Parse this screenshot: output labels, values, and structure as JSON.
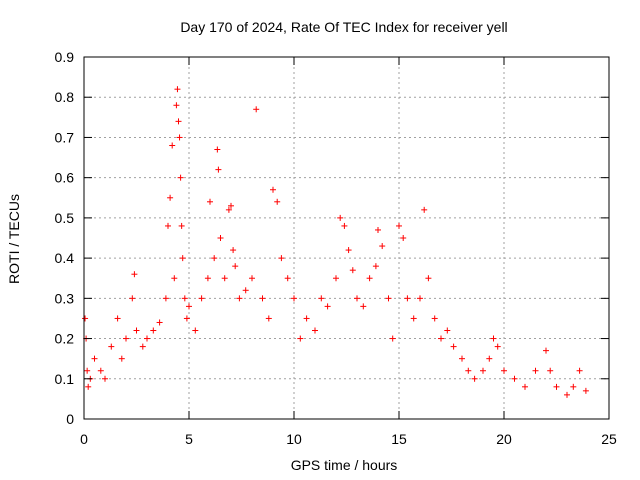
{
  "chart_data": {
    "type": "scatter",
    "title": "Day 170 of 2024, Rate Of TEC Index for receiver yell",
    "xlabel": "GPS time / hours",
    "ylabel": "ROTI / TECUs",
    "xlim": [
      0,
      25
    ],
    "ylim": [
      0,
      0.9
    ],
    "x_ticks": [
      "0",
      "5",
      "10",
      "15",
      "20",
      "25"
    ],
    "y_ticks": [
      "0",
      "0.1",
      "0.2",
      "0.3",
      "0.4",
      "0.5",
      "0.6",
      "0.7",
      "0.8",
      "0.9"
    ],
    "grid": true,
    "marker": "+",
    "series_color": "#ff0000",
    "series": [
      {
        "name": "ROTI",
        "x": [
          0.05,
          0.1,
          0.15,
          0.2,
          0.3,
          0.5,
          0.8,
          1.0,
          1.3,
          1.6,
          1.8,
          2.0,
          2.3,
          2.4,
          2.5,
          2.8,
          3.0,
          3.3,
          3.6,
          3.9,
          4.0,
          4.1,
          4.2,
          4.3,
          4.4,
          4.45,
          4.5,
          4.55,
          4.6,
          4.65,
          4.7,
          4.8,
          4.9,
          5.0,
          5.3,
          5.6,
          5.9,
          6.0,
          6.2,
          6.35,
          6.4,
          6.5,
          6.7,
          6.9,
          7.0,
          7.1,
          7.2,
          7.4,
          7.7,
          8.0,
          8.2,
          8.5,
          8.8,
          9.0,
          9.2,
          9.4,
          9.7,
          10.0,
          10.3,
          10.6,
          11.0,
          11.3,
          11.6,
          12.0,
          12.2,
          12.4,
          12.6,
          12.8,
          13.0,
          13.3,
          13.6,
          13.9,
          14.0,
          14.2,
          14.5,
          14.7,
          15.0,
          15.2,
          15.4,
          15.7,
          16.0,
          16.2,
          16.4,
          16.7,
          17.0,
          17.3,
          17.6,
          18.0,
          18.3,
          18.6,
          19.0,
          19.3,
          19.5,
          19.7,
          20.0,
          20.5,
          21.0,
          21.5,
          22.0,
          22.2,
          22.5,
          23.0,
          23.3,
          23.6,
          23.9
        ],
        "y": [
          0.25,
          0.2,
          0.12,
          0.08,
          0.1,
          0.15,
          0.12,
          0.1,
          0.18,
          0.25,
          0.15,
          0.2,
          0.3,
          0.36,
          0.22,
          0.18,
          0.2,
          0.22,
          0.24,
          0.3,
          0.48,
          0.55,
          0.68,
          0.35,
          0.78,
          0.82,
          0.74,
          0.7,
          0.6,
          0.48,
          0.4,
          0.3,
          0.25,
          0.28,
          0.22,
          0.3,
          0.35,
          0.54,
          0.4,
          0.67,
          0.62,
          0.45,
          0.35,
          0.52,
          0.53,
          0.42,
          0.38,
          0.3,
          0.32,
          0.35,
          0.77,
          0.3,
          0.25,
          0.57,
          0.54,
          0.4,
          0.35,
          0.3,
          0.2,
          0.25,
          0.22,
          0.3,
          0.28,
          0.35,
          0.5,
          0.48,
          0.42,
          0.37,
          0.3,
          0.28,
          0.35,
          0.38,
          0.47,
          0.43,
          0.3,
          0.2,
          0.48,
          0.45,
          0.3,
          0.25,
          0.3,
          0.52,
          0.35,
          0.25,
          0.2,
          0.22,
          0.18,
          0.15,
          0.12,
          0.1,
          0.12,
          0.15,
          0.2,
          0.18,
          0.12,
          0.1,
          0.08,
          0.12,
          0.17,
          0.12,
          0.08,
          0.06,
          0.08,
          0.12,
          0.07
        ]
      }
    ]
  }
}
